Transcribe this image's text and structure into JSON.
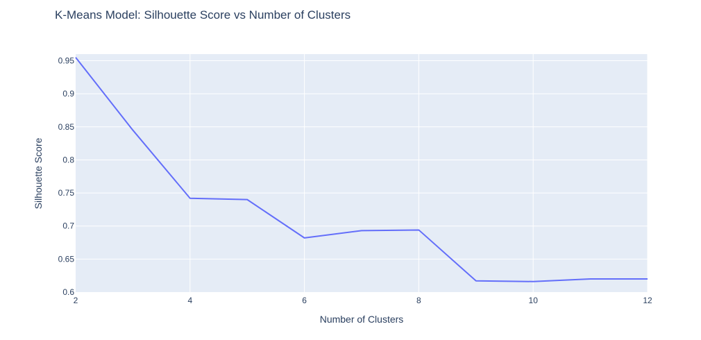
{
  "chart_data": {
    "type": "line",
    "title": "K-Means Model: Silhouette Score vs Number of Clusters",
    "xlabel": "Number of Clusters",
    "ylabel": "Silhouette Score",
    "x": [
      2,
      3,
      4,
      5,
      6,
      7,
      8,
      9,
      10,
      11,
      12
    ],
    "series": [
      {
        "values": [
          0.955,
          0.845,
          0.742,
          0.74,
          0.682,
          0.693,
          0.694,
          0.617,
          0.616,
          0.62,
          0.62
        ]
      }
    ],
    "xlim": [
      2,
      12
    ],
    "ylim": [
      0.6,
      0.96
    ],
    "xticks": [
      2,
      4,
      6,
      8,
      10,
      12
    ],
    "xtick_labels": [
      "2",
      "4",
      "6",
      "8",
      "10",
      "12"
    ],
    "yticks": [
      0.6,
      0.65,
      0.7,
      0.75,
      0.8,
      0.85,
      0.9,
      0.95
    ],
    "ytick_labels": [
      "0.6",
      "0.65",
      "0.7",
      "0.75",
      "0.8",
      "0.85",
      "0.9",
      "0.95"
    ],
    "grid": true,
    "legend": "none",
    "colors": {
      "line": "#636efa",
      "plot_background": "#e5ecf6",
      "grid": "#ffffff",
      "text": "#2a3f5f"
    }
  }
}
